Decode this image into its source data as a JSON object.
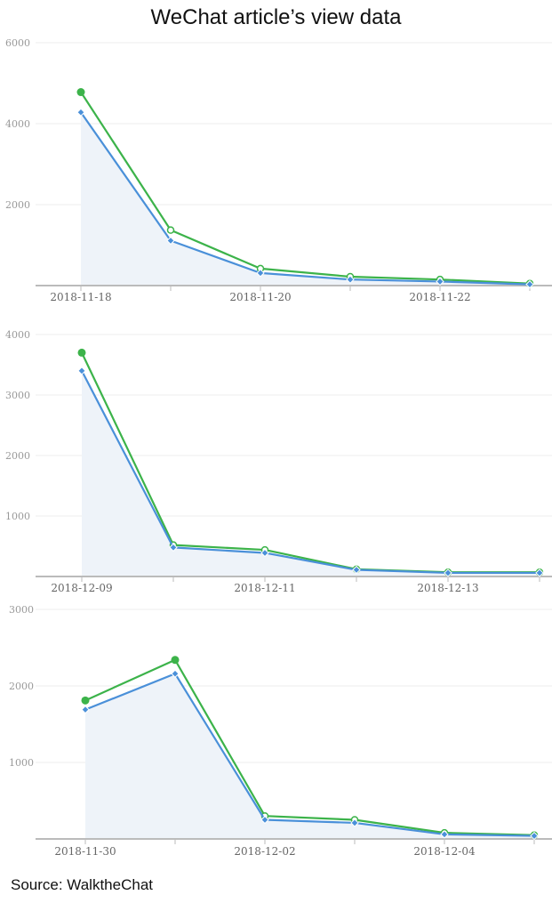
{
  "title": "WeChat article’s view data",
  "source": "Source: WalktheChat",
  "colors": {
    "green": "#3cb34a",
    "blue": "#4a90d9",
    "fill": "#eef3f9",
    "grid": "#ececec",
    "axis": "#bbbbbb"
  },
  "chart_data": [
    {
      "type": "line",
      "x": [
        "2018-11-18",
        "2018-11-19",
        "2018-11-20",
        "2018-11-21",
        "2018-11-22",
        "2018-11-23"
      ],
      "xticklabels": [
        "2018-11-18",
        "2018-11-20",
        "2018-11-22"
      ],
      "yticks": [
        2000,
        4000,
        6000
      ],
      "ylim": [
        0,
        6000
      ],
      "series": [
        {
          "color": "green",
          "marker": "circle",
          "values": [
            4780,
            1370,
            420,
            220,
            150,
            50
          ]
        },
        {
          "color": "blue",
          "marker": "diamond",
          "values": [
            4280,
            1110,
            310,
            150,
            100,
            30
          ]
        }
      ],
      "area_under": "blue"
    },
    {
      "type": "line",
      "x": [
        "2018-12-09",
        "2018-12-10",
        "2018-12-11",
        "2018-12-12",
        "2018-12-13",
        "2018-12-14"
      ],
      "xticklabels": [
        "2018-12-09",
        "2018-12-11",
        "2018-12-13"
      ],
      "yticks": [
        1000,
        2000,
        3000,
        4000
      ],
      "ylim": [
        0,
        4000
      ],
      "series": [
        {
          "color": "green",
          "marker": "circle",
          "values": [
            3700,
            520,
            440,
            120,
            70,
            70
          ]
        },
        {
          "color": "blue",
          "marker": "diamond",
          "values": [
            3400,
            480,
            390,
            110,
            60,
            60
          ]
        }
      ],
      "area_under": "blue"
    },
    {
      "type": "line",
      "x": [
        "2018-11-30",
        "2018-12-01",
        "2018-12-02",
        "2018-12-03",
        "2018-12-04",
        "2018-12-05"
      ],
      "xticklabels": [
        "2018-11-30",
        "2018-12-02",
        "2018-12-04"
      ],
      "yticks": [
        1000,
        2000,
        3000
      ],
      "ylim": [
        0,
        3000
      ],
      "series": [
        {
          "color": "green",
          "marker": "circle",
          "values": [
            1810,
            2340,
            300,
            250,
            80,
            50
          ]
        },
        {
          "color": "blue",
          "marker": "diamond",
          "values": [
            1690,
            2160,
            250,
            210,
            60,
            40
          ]
        }
      ],
      "area_under": "blue"
    }
  ]
}
